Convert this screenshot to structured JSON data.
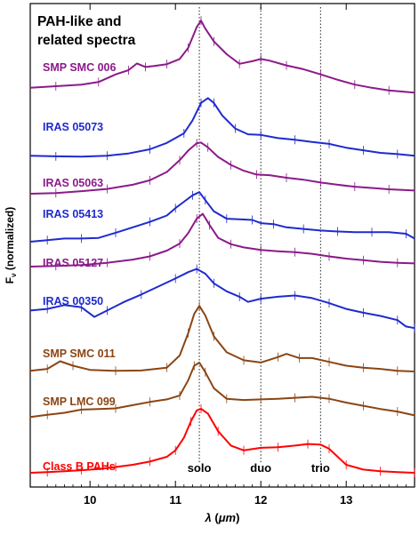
{
  "chart_data": {
    "type": "line",
    "title": "PAH-like and\nrelated spectra",
    "title_lines": [
      "PAH-like and",
      "related spectra"
    ],
    "xlabel": "λ (μm)",
    "xlabel_parts": {
      "symbol": "λ",
      "open": " (",
      "unit": "μm",
      "close": ")"
    },
    "ylabel": "Fν (normalized)",
    "ylabel_parts": {
      "main": "F",
      "sub": "ν",
      "rest": " (normalized)"
    },
    "xlim": [
      9.3,
      13.8
    ],
    "xticks": [
      10,
      11,
      12,
      13
    ],
    "xtick_labels": [
      "10",
      "11",
      "12",
      "13"
    ],
    "grid": false,
    "legend": "inline labels on left",
    "feature_lines": [
      {
        "x": 11.28,
        "label": "solo"
      },
      {
        "x": 12.0,
        "label": "duo"
      },
      {
        "x": 12.7,
        "label": "trio"
      }
    ],
    "series": [
      {
        "name": "SMP SMC 006",
        "color": "#8B1A89",
        "x": [
          9.3,
          9.6,
          9.9,
          10.1,
          10.3,
          10.45,
          10.55,
          10.65,
          10.75,
          10.9,
          11.05,
          11.15,
          11.25,
          11.3,
          11.35,
          11.45,
          11.6,
          11.75,
          11.9,
          12.0,
          12.1,
          12.3,
          12.5,
          12.7,
          12.9,
          13.1,
          13.3,
          13.5,
          13.8
        ],
        "values": [
          0.2,
          0.25,
          0.3,
          0.38,
          0.62,
          0.75,
          0.96,
          0.85,
          0.88,
          0.94,
          1.1,
          1.45,
          2.1,
          2.3,
          2.05,
          1.65,
          1.25,
          0.95,
          1.03,
          1.1,
          1.05,
          0.9,
          0.78,
          0.62,
          0.45,
          0.3,
          0.2,
          0.12,
          0.05
        ]
      },
      {
        "name": "IRAS 05073",
        "color": "#1F2ACF",
        "x": [
          9.3,
          9.6,
          9.9,
          10.2,
          10.45,
          10.7,
          10.9,
          11.1,
          11.2,
          11.3,
          11.38,
          11.45,
          11.55,
          11.7,
          11.85,
          12.0,
          12.2,
          12.4,
          12.6,
          12.8,
          13.0,
          13.2,
          13.4,
          13.6,
          13.8
        ],
        "values": [
          0.05,
          0.03,
          0.02,
          0.05,
          0.12,
          0.25,
          0.45,
          0.75,
          1.15,
          1.7,
          1.85,
          1.7,
          1.3,
          0.9,
          0.72,
          0.7,
          0.6,
          0.55,
          0.48,
          0.42,
          0.3,
          0.22,
          0.14,
          0.1,
          0.05
        ]
      },
      {
        "name": "IRAS 05063",
        "color": "#8B1A89",
        "x": [
          9.3,
          9.6,
          9.9,
          10.2,
          10.5,
          10.7,
          10.9,
          11.05,
          11.15,
          11.25,
          11.3,
          11.38,
          11.5,
          11.65,
          11.8,
          11.95,
          12.1,
          12.3,
          12.5,
          12.7,
          12.9,
          13.1,
          13.3,
          13.5,
          13.8
        ],
        "values": [
          0.0,
          0.02,
          0.08,
          0.15,
          0.28,
          0.42,
          0.68,
          1.05,
          1.35,
          1.58,
          1.6,
          1.45,
          1.15,
          0.9,
          0.72,
          0.6,
          0.58,
          0.5,
          0.44,
          0.35,
          0.28,
          0.22,
          0.18,
          0.14,
          0.1
        ]
      },
      {
        "name": "IRAS 05413",
        "color": "#1F2ACF",
        "x": [
          9.3,
          9.5,
          9.7,
          9.9,
          10.1,
          10.3,
          10.5,
          10.7,
          10.9,
          11.0,
          11.1,
          11.2,
          11.28,
          11.35,
          11.45,
          11.6,
          11.75,
          11.9,
          12.0,
          12.15,
          12.3,
          12.5,
          12.7,
          12.9,
          13.1,
          13.3,
          13.5,
          13.7,
          13.8
        ],
        "values": [
          0.0,
          0.05,
          0.1,
          0.1,
          0.12,
          0.28,
          0.45,
          0.62,
          0.82,
          1.05,
          1.25,
          1.45,
          1.55,
          1.3,
          0.95,
          0.72,
          0.7,
          0.68,
          0.58,
          0.55,
          0.45,
          0.4,
          0.35,
          0.32,
          0.3,
          0.3,
          0.3,
          0.25,
          0.1
        ]
      },
      {
        "name": "IRAS 05127",
        "color": "#8B1A89",
        "x": [
          9.3,
          9.6,
          9.9,
          10.2,
          10.5,
          10.7,
          10.9,
          11.05,
          11.15,
          11.25,
          11.32,
          11.4,
          11.5,
          11.65,
          11.8,
          12.0,
          12.2,
          12.4,
          12.6,
          12.8,
          13.0,
          13.2,
          13.4,
          13.6,
          13.8
        ],
        "values": [
          0.0,
          0.02,
          0.05,
          0.12,
          0.22,
          0.32,
          0.5,
          0.72,
          1.05,
          1.5,
          1.65,
          1.3,
          0.9,
          0.7,
          0.6,
          0.52,
          0.48,
          0.45,
          0.4,
          0.32,
          0.25,
          0.2,
          0.15,
          0.12,
          0.1
        ]
      },
      {
        "name": "IRAS 00350",
        "color": "#1F2ACF",
        "x": [
          9.3,
          9.5,
          9.7,
          9.9,
          10.05,
          10.2,
          10.4,
          10.6,
          10.8,
          11.0,
          11.15,
          11.25,
          11.35,
          11.45,
          11.6,
          11.75,
          11.85,
          12.0,
          12.2,
          12.4,
          12.6,
          12.8,
          13.0,
          13.2,
          13.4,
          13.6,
          13.7,
          13.8
        ],
        "values": [
          0.35,
          0.4,
          0.52,
          0.45,
          0.15,
          0.35,
          0.62,
          0.85,
          1.1,
          1.35,
          1.55,
          1.65,
          1.5,
          1.2,
          0.95,
          0.78,
          0.62,
          0.72,
          0.78,
          0.82,
          0.74,
          0.58,
          0.4,
          0.28,
          0.18,
          0.05,
          -0.15,
          -0.2
        ]
      },
      {
        "name": "SMP SMC 011",
        "color": "#8B4513",
        "x": [
          9.3,
          9.5,
          9.65,
          9.8,
          10.0,
          10.3,
          10.6,
          10.9,
          11.05,
          11.15,
          11.22,
          11.28,
          11.35,
          11.45,
          11.6,
          11.8,
          12.0,
          12.2,
          12.3,
          12.45,
          12.6,
          12.8,
          13.0,
          13.2,
          13.4,
          13.6,
          13.8
        ],
        "values": [
          0.02,
          0.08,
          0.32,
          0.18,
          0.05,
          0.02,
          0.03,
          0.12,
          0.5,
          1.2,
          1.8,
          2.05,
          1.75,
          1.1,
          0.6,
          0.35,
          0.28,
          0.45,
          0.55,
          0.42,
          0.42,
          0.3,
          0.18,
          0.12,
          0.08,
          0.02,
          0.0
        ]
      },
      {
        "name": "SMP LMC 099",
        "color": "#8B4513",
        "x": [
          9.3,
          9.5,
          9.7,
          9.9,
          10.1,
          10.3,
          10.5,
          10.7,
          10.9,
          11.05,
          11.15,
          11.22,
          11.28,
          11.35,
          11.45,
          11.6,
          11.8,
          12.0,
          12.2,
          12.4,
          12.6,
          12.8,
          13.0,
          13.2,
          13.4,
          13.6,
          13.8
        ],
        "values": [
          0.05,
          0.12,
          0.18,
          0.28,
          0.3,
          0.32,
          0.42,
          0.52,
          0.6,
          0.72,
          1.2,
          1.65,
          1.75,
          1.45,
          0.95,
          0.62,
          0.58,
          0.6,
          0.62,
          0.65,
          0.68,
          0.62,
          0.5,
          0.4,
          0.3,
          0.22,
          0.1
        ]
      },
      {
        "name": "Class B PAHs",
        "color": "#FF0000",
        "x": [
          9.3,
          9.5,
          9.7,
          9.9,
          10.1,
          10.3,
          10.5,
          10.7,
          10.9,
          11.0,
          11.1,
          11.18,
          11.25,
          11.3,
          11.38,
          11.5,
          11.65,
          11.8,
          12.0,
          12.2,
          12.4,
          12.55,
          12.7,
          12.8,
          12.9,
          13.0,
          13.2,
          13.4,
          13.6,
          13.8
        ],
        "values": [
          0.0,
          0.02,
          0.05,
          0.08,
          0.12,
          0.18,
          0.25,
          0.35,
          0.5,
          0.7,
          1.1,
          1.6,
          1.95,
          2.0,
          1.85,
          1.3,
          0.85,
          0.7,
          0.78,
          0.8,
          0.85,
          0.9,
          0.88,
          0.75,
          0.5,
          0.25,
          0.1,
          0.05,
          0.02,
          0.0
        ]
      }
    ]
  }
}
